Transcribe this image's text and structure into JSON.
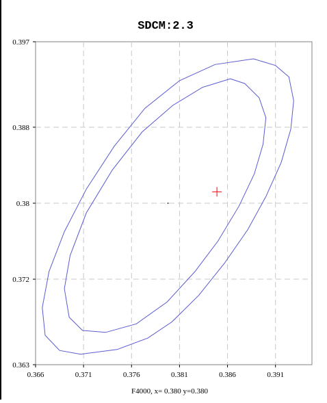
{
  "chart_data": {
    "type": "line",
    "title": "SDCM:2.3",
    "xlabel": "",
    "ylabel": "",
    "xlim": [
      0.366,
      0.3948
    ],
    "ylim": [
      0.363,
      0.397
    ],
    "grid": true,
    "x_ticks": [
      "0.366",
      "0.371",
      "0.376",
      "0.381",
      "0.386",
      "0.391"
    ],
    "x_tick_values": [
      0.366,
      0.371,
      0.376,
      0.381,
      0.386,
      0.391
    ],
    "y_ticks": [
      "0.397",
      "0.388",
      "0.38",
      "0.372",
      "0.363"
    ],
    "y_tick_values": [
      0.397,
      0.388,
      0.38,
      0.372,
      0.363
    ],
    "footer": "F4000,  x= 0.380 y=0.380",
    "series": [
      {
        "kind": "ellipse",
        "points": [
          [
            0.3887,
            0.3952
          ],
          [
            0.391,
            0.3945
          ],
          [
            0.3924,
            0.3933
          ],
          [
            0.3929,
            0.3908
          ],
          [
            0.3926,
            0.3878
          ],
          [
            0.3916,
            0.3843
          ],
          [
            0.39,
            0.3807
          ],
          [
            0.3881,
            0.3772
          ],
          [
            0.3857,
            0.3737
          ],
          [
            0.383,
            0.3703
          ],
          [
            0.3802,
            0.3675
          ],
          [
            0.3777,
            0.3658
          ],
          [
            0.3745,
            0.3646
          ],
          [
            0.3707,
            0.3641
          ],
          [
            0.3685,
            0.3645
          ],
          [
            0.367,
            0.3661
          ],
          [
            0.3667,
            0.369
          ],
          [
            0.3674,
            0.3728
          ],
          [
            0.369,
            0.377
          ],
          [
            0.3713,
            0.3815
          ],
          [
            0.3742,
            0.386
          ],
          [
            0.3774,
            0.39
          ],
          [
            0.381,
            0.3929
          ],
          [
            0.3847,
            0.3946
          ],
          [
            0.3887,
            0.3952
          ]
        ]
      },
      {
        "kind": "ellipse",
        "points": [
          [
            0.3863,
            0.3931
          ],
          [
            0.3878,
            0.3926
          ],
          [
            0.3893,
            0.3911
          ],
          [
            0.39,
            0.389
          ],
          [
            0.3897,
            0.3862
          ],
          [
            0.3888,
            0.3831
          ],
          [
            0.3872,
            0.3797
          ],
          [
            0.385,
            0.376
          ],
          [
            0.3826,
            0.3728
          ],
          [
            0.3797,
            0.3696
          ],
          [
            0.3765,
            0.3673
          ],
          [
            0.3733,
            0.3664
          ],
          [
            0.3709,
            0.3666
          ],
          [
            0.3695,
            0.368
          ],
          [
            0.369,
            0.371
          ],
          [
            0.3696,
            0.3745
          ],
          [
            0.3713,
            0.379
          ],
          [
            0.374,
            0.3835
          ],
          [
            0.3771,
            0.3875
          ],
          [
            0.3803,
            0.3903
          ],
          [
            0.3834,
            0.3922
          ],
          [
            0.3863,
            0.3931
          ]
        ]
      }
    ],
    "markers": [
      {
        "symbol": "+",
        "x": 0.3849,
        "y": 0.3812,
        "color": "#ff0000"
      },
      {
        "symbol": "dot",
        "x": 0.3798,
        "y": 0.38,
        "color": "#000000"
      }
    ],
    "colors": {
      "curve": "#5a5ad2",
      "grid": "#c8c8c8",
      "axis": "#000000",
      "marker": "#ff0000"
    }
  }
}
